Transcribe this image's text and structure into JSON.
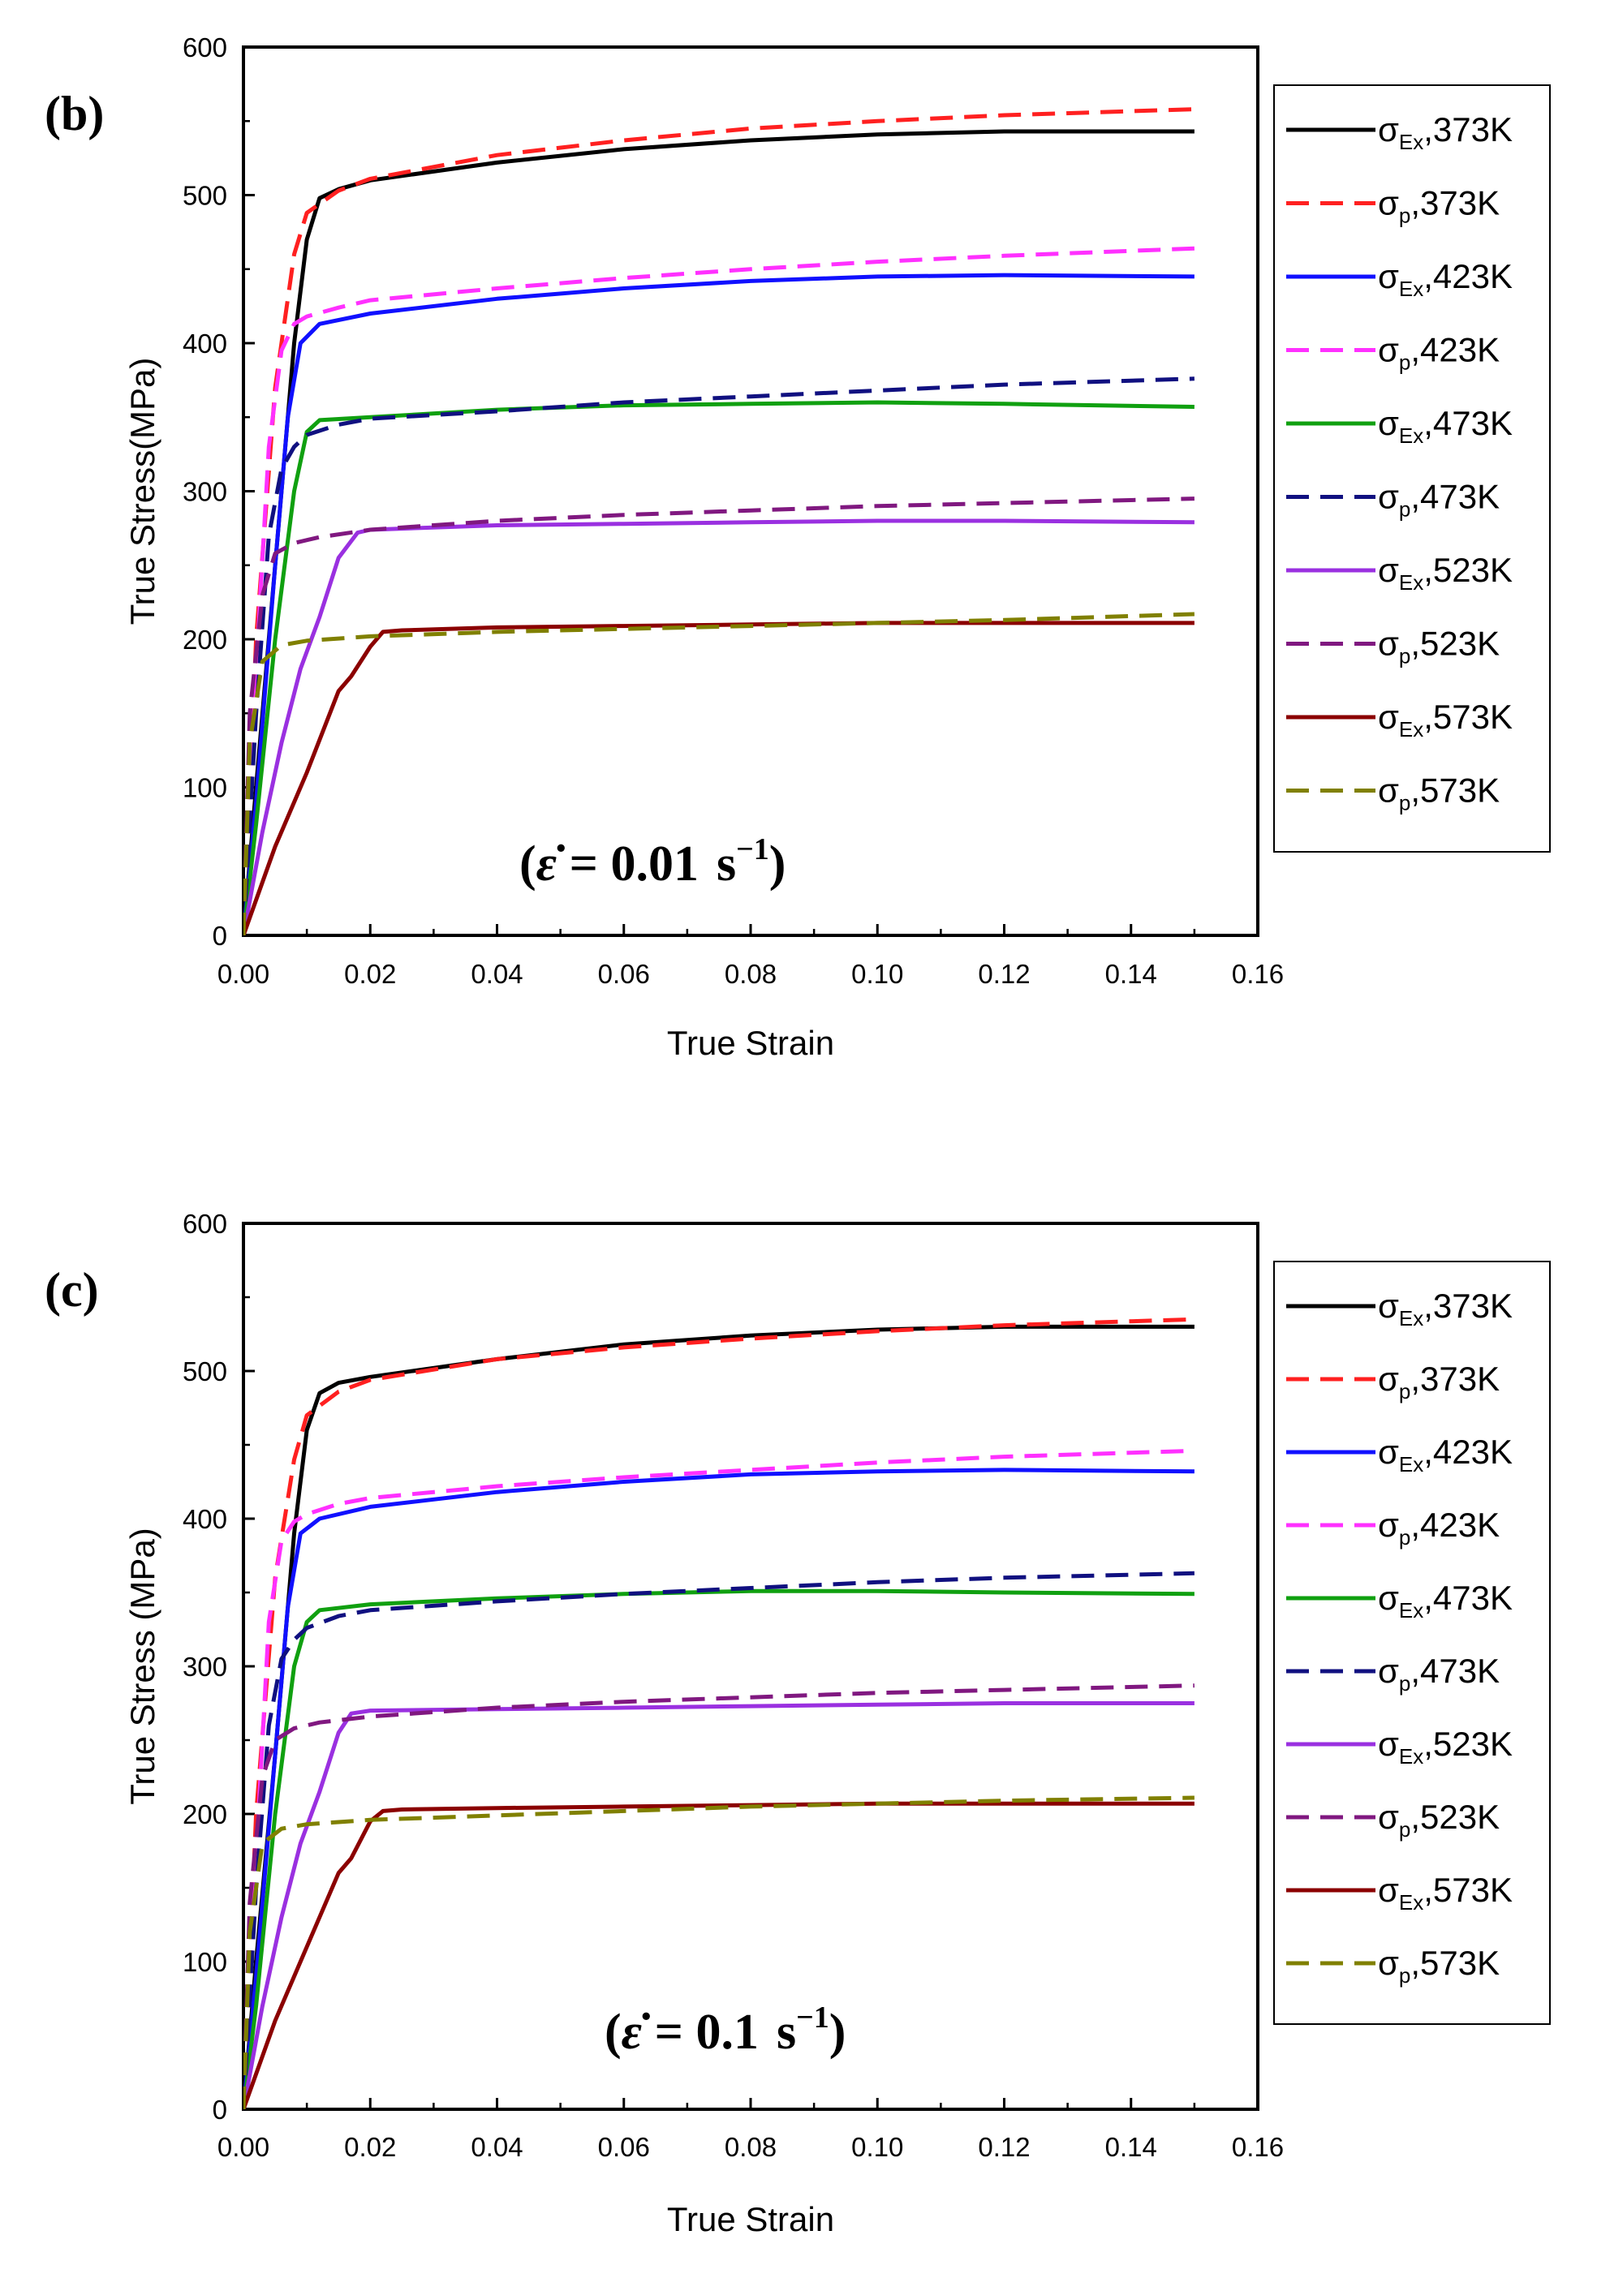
{
  "chart_data": [
    {
      "type": "line",
      "panel_label": "(b)",
      "rate_label": {
        "open": "(",
        "symbol": "ε̇",
        "eq": " = ",
        "value": "0.01",
        "unit": "s",
        "exponent": "−1",
        "close": ")"
      },
      "xlabel": "True Strain",
      "ylabel": "True Stress(MPa)",
      "xlim": [
        0,
        0.16
      ],
      "ylim": [
        0,
        600
      ],
      "xticks": [
        "0.00",
        "0.02",
        "0.04",
        "0.06",
        "0.08",
        "0.10",
        "0.12",
        "0.14",
        "0.16"
      ],
      "yticks": [
        "0",
        "100",
        "200",
        "300",
        "400",
        "500",
        "600"
      ],
      "series": [
        {
          "name": "σEx,373K",
          "sym": "σ",
          "sub": "Ex",
          "temp": ",373K",
          "color": "#000000",
          "dash": false,
          "x": [
            0,
            0.002,
            0.005,
            0.008,
            0.01,
            0.012,
            0.015,
            0.02,
            0.04,
            0.06,
            0.08,
            0.1,
            0.12,
            0.15
          ],
          "y": [
            0,
            100,
            250,
            400,
            470,
            498,
            504,
            510,
            522,
            531,
            537,
            541,
            543,
            543
          ]
        },
        {
          "name": "σp,373K",
          "sym": "σ",
          "sub": "p",
          "temp": ",373K",
          "color": "#ff2020",
          "dash": true,
          "x": [
            0,
            0.002,
            0.005,
            0.008,
            0.01,
            0.015,
            0.02,
            0.04,
            0.06,
            0.08,
            0.1,
            0.12,
            0.15
          ],
          "y": [
            0,
            200,
            370,
            460,
            488,
            503,
            511,
            527,
            537,
            545,
            550,
            554,
            558
          ]
        },
        {
          "name": "σEx,423K",
          "sym": "σ",
          "sub": "Ex",
          "temp": ",423K",
          "color": "#1010ff",
          "dash": false,
          "x": [
            0,
            0.002,
            0.005,
            0.007,
            0.009,
            0.012,
            0.02,
            0.04,
            0.06,
            0.08,
            0.1,
            0.12,
            0.15
          ],
          "y": [
            0,
            90,
            250,
            350,
            400,
            413,
            420,
            430,
            437,
            442,
            445,
            446,
            445
          ]
        },
        {
          "name": "σp,423K",
          "sym": "σ",
          "sub": "p",
          "temp": ",423K",
          "color": "#ff30ff",
          "dash": true,
          "x": [
            0,
            0.002,
            0.004,
            0.006,
            0.008,
            0.01,
            0.015,
            0.02,
            0.04,
            0.06,
            0.08,
            0.1,
            0.12,
            0.15
          ],
          "y": [
            0,
            180,
            330,
            395,
            413,
            418,
            424,
            429,
            437,
            444,
            450,
            455,
            459,
            464
          ]
        },
        {
          "name": "σEx,473K",
          "sym": "σ",
          "sub": "Ex",
          "temp": ",473K",
          "color": "#10a010",
          "dash": false,
          "x": [
            0,
            0.002,
            0.005,
            0.008,
            0.01,
            0.012,
            0.02,
            0.04,
            0.06,
            0.08,
            0.1,
            0.12,
            0.15
          ],
          "y": [
            0,
            75,
            200,
            300,
            340,
            348,
            350,
            355,
            358,
            359,
            360,
            359,
            357
          ]
        },
        {
          "name": "σp,473K",
          "sym": "σ",
          "sub": "p",
          "temp": ",473K",
          "color": "#101080",
          "dash": true,
          "x": [
            0,
            0.002,
            0.004,
            0.006,
            0.008,
            0.01,
            0.015,
            0.02,
            0.04,
            0.06,
            0.08,
            0.1,
            0.12,
            0.15
          ],
          "y": [
            0,
            150,
            270,
            315,
            330,
            338,
            345,
            349,
            354,
            360,
            364,
            368,
            372,
            376
          ]
        },
        {
          "name": "σEx,523K",
          "sym": "σ",
          "sub": "Ex",
          "temp": ",523K",
          "color": "#9a30e0",
          "dash": false,
          "x": [
            0,
            0.003,
            0.006,
            0.009,
            0.012,
            0.015,
            0.018,
            0.02,
            0.04,
            0.06,
            0.08,
            0.1,
            0.12,
            0.15
          ],
          "y": [
            0,
            70,
            130,
            180,
            215,
            255,
            272,
            274,
            277,
            278,
            279,
            280,
            280,
            279
          ]
        },
        {
          "name": "σp,523K",
          "sym": "σ",
          "sub": "p",
          "temp": ",523K",
          "color": "#801880",
          "dash": true,
          "x": [
            0,
            0.001,
            0.003,
            0.005,
            0.008,
            0.012,
            0.02,
            0.04,
            0.06,
            0.08,
            0.1,
            0.12,
            0.15
          ],
          "y": [
            0,
            150,
            230,
            258,
            265,
            269,
            274,
            280,
            284,
            287,
            290,
            292,
            295
          ]
        },
        {
          "name": "σEx,573K",
          "sym": "σ",
          "sub": "Ex",
          "temp": ",573K",
          "color": "#8b0000",
          "dash": false,
          "x": [
            0,
            0.005,
            0.01,
            0.015,
            0.017,
            0.02,
            0.022,
            0.025,
            0.04,
            0.06,
            0.08,
            0.1,
            0.12,
            0.15
          ],
          "y": [
            0,
            60,
            110,
            165,
            175,
            195,
            205,
            206,
            208,
            209,
            210,
            211,
            211,
            211
          ]
        },
        {
          "name": "σp,573K",
          "sym": "σ",
          "sub": "p",
          "temp": ",573K",
          "color": "#808000",
          "dash": true,
          "x": [
            0,
            0.001,
            0.003,
            0.006,
            0.01,
            0.02,
            0.04,
            0.06,
            0.08,
            0.1,
            0.12,
            0.15
          ],
          "y": [
            0,
            130,
            185,
            196,
            199,
            202,
            205,
            207,
            209,
            211,
            213,
            217
          ]
        }
      ]
    },
    {
      "type": "line",
      "panel_label": "(c)",
      "rate_label": {
        "open": "(",
        "symbol": "ε̇",
        "eq": " = ",
        "value": "0.1",
        "unit": "s",
        "exponent": "−1",
        "close": ")"
      },
      "xlabel": "True Strain",
      "ylabel": "True Stress (MPa)",
      "xlim": [
        0,
        0.16
      ],
      "ylim": [
        0,
        600
      ],
      "xticks": [
        "0.00",
        "0.02",
        "0.04",
        "0.06",
        "0.08",
        "0.10",
        "0.12",
        "0.14",
        "0.16"
      ],
      "yticks": [
        "0",
        "100",
        "200",
        "300",
        "400",
        "500",
        "600"
      ],
      "series": [
        {
          "name": "σEx,373K",
          "sym": "σ",
          "sub": "Ex",
          "temp": ",373K",
          "color": "#000000",
          "dash": false,
          "x": [
            0,
            0.002,
            0.005,
            0.008,
            0.01,
            0.012,
            0.015,
            0.02,
            0.04,
            0.06,
            0.08,
            0.1,
            0.12,
            0.15
          ],
          "y": [
            0,
            100,
            240,
            390,
            460,
            485,
            492,
            496,
            508,
            518,
            524,
            528,
            530,
            530
          ]
        },
        {
          "name": "σp,373K",
          "sym": "σ",
          "sub": "p",
          "temp": ",373K",
          "color": "#ff2020",
          "dash": true,
          "x": [
            0,
            0.002,
            0.005,
            0.008,
            0.01,
            0.015,
            0.02,
            0.04,
            0.06,
            0.08,
            0.1,
            0.12,
            0.15
          ],
          "y": [
            0,
            200,
            360,
            440,
            470,
            486,
            494,
            508,
            516,
            522,
            527,
            531,
            535
          ]
        },
        {
          "name": "σEx,423K",
          "sym": "σ",
          "sub": "Ex",
          "temp": ",423K",
          "color": "#1010ff",
          "dash": false,
          "x": [
            0,
            0.002,
            0.005,
            0.007,
            0.009,
            0.012,
            0.02,
            0.04,
            0.06,
            0.08,
            0.1,
            0.12,
            0.15
          ],
          "y": [
            0,
            90,
            240,
            340,
            390,
            400,
            408,
            418,
            425,
            430,
            432,
            433,
            432
          ]
        },
        {
          "name": "σp,423K",
          "sym": "σ",
          "sub": "p",
          "temp": ",423K",
          "color": "#ff30ff",
          "dash": true,
          "x": [
            0,
            0.002,
            0.004,
            0.006,
            0.008,
            0.01,
            0.015,
            0.02,
            0.04,
            0.06,
            0.08,
            0.1,
            0.12,
            0.15
          ],
          "y": [
            0,
            170,
            330,
            385,
            398,
            403,
            410,
            414,
            422,
            428,
            433,
            438,
            442,
            446
          ]
        },
        {
          "name": "σEx,473K",
          "sym": "σ",
          "sub": "Ex",
          "temp": ",473K",
          "color": "#10a010",
          "dash": false,
          "x": [
            0,
            0.002,
            0.005,
            0.008,
            0.01,
            0.012,
            0.02,
            0.04,
            0.06,
            0.08,
            0.1,
            0.12,
            0.15
          ],
          "y": [
            0,
            70,
            200,
            300,
            330,
            338,
            342,
            346,
            349,
            351,
            351,
            350,
            349
          ]
        },
        {
          "name": "σp,473K",
          "sym": "σ",
          "sub": "p",
          "temp": ",473K",
          "color": "#101080",
          "dash": true,
          "x": [
            0,
            0.002,
            0.004,
            0.006,
            0.008,
            0.01,
            0.015,
            0.02,
            0.04,
            0.06,
            0.08,
            0.1,
            0.12,
            0.15
          ],
          "y": [
            0,
            150,
            260,
            305,
            318,
            326,
            334,
            338,
            344,
            349,
            353,
            357,
            360,
            363
          ]
        },
        {
          "name": "σEx,523K",
          "sym": "σ",
          "sub": "Ex",
          "temp": ",523K",
          "color": "#9a30e0",
          "dash": false,
          "x": [
            0,
            0.003,
            0.006,
            0.009,
            0.012,
            0.015,
            0.017,
            0.02,
            0.04,
            0.06,
            0.08,
            0.1,
            0.12,
            0.15
          ],
          "y": [
            0,
            70,
            130,
            180,
            215,
            255,
            268,
            270,
            271,
            272,
            273,
            274,
            275,
            275
          ]
        },
        {
          "name": "σp,523K",
          "sym": "σ",
          "sub": "p",
          "temp": ",523K",
          "color": "#801880",
          "dash": true,
          "x": [
            0,
            0.001,
            0.003,
            0.005,
            0.008,
            0.012,
            0.02,
            0.04,
            0.06,
            0.08,
            0.1,
            0.12,
            0.15
          ],
          "y": [
            0,
            140,
            225,
            250,
            258,
            262,
            266,
            272,
            276,
            279,
            282,
            284,
            287
          ]
        },
        {
          "name": "σEx,573K",
          "sym": "σ",
          "sub": "Ex",
          "temp": ",573K",
          "color": "#8b0000",
          "dash": false,
          "x": [
            0,
            0.005,
            0.01,
            0.015,
            0.017,
            0.02,
            0.022,
            0.025,
            0.04,
            0.06,
            0.08,
            0.1,
            0.12,
            0.15
          ],
          "y": [
            0,
            60,
            110,
            160,
            170,
            195,
            202,
            203,
            204,
            205,
            206,
            207,
            207,
            207
          ]
        },
        {
          "name": "σp,573K",
          "sym": "σ",
          "sub": "p",
          "temp": ",573K",
          "color": "#808000",
          "dash": true,
          "x": [
            0,
            0.001,
            0.003,
            0.006,
            0.01,
            0.02,
            0.04,
            0.06,
            0.08,
            0.1,
            0.12,
            0.15
          ],
          "y": [
            0,
            120,
            180,
            190,
            193,
            196,
            199,
            202,
            205,
            207,
            209,
            211
          ]
        }
      ]
    }
  ]
}
